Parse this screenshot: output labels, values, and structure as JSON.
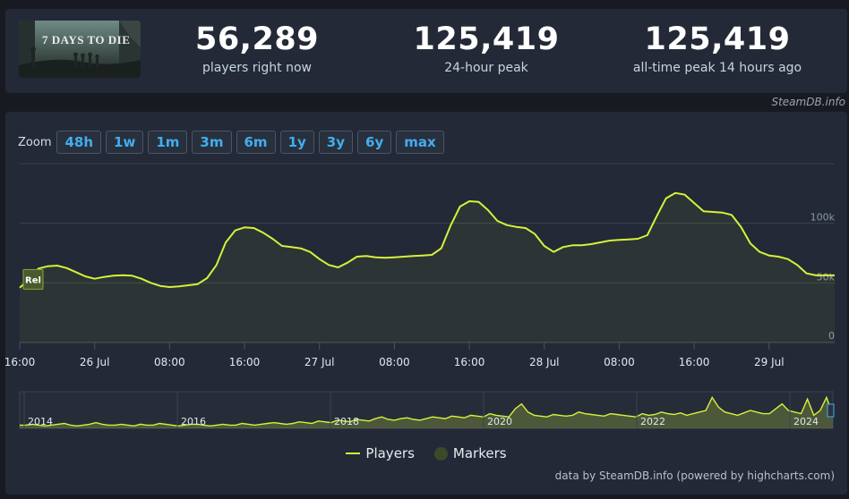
{
  "header": {
    "game_logo_text": "7 DAYS TO DIE",
    "stats": [
      {
        "value": "56,289",
        "label": "players right now"
      },
      {
        "value": "125,419",
        "label": "24-hour peak"
      },
      {
        "value": "125,419",
        "label": "all-time peak 14 hours ago"
      }
    ],
    "credit": "SteamDB.info"
  },
  "zoom": {
    "label": "Zoom",
    "buttons": [
      "48h",
      "1w",
      "1m",
      "3m",
      "6m",
      "1y",
      "3y",
      "6y",
      "max"
    ]
  },
  "legend": {
    "players": "Players",
    "markers": "Markers"
  },
  "footer_credit": "data by SteamDB.info (powered by highcharts.com)",
  "colors": {
    "line": "#d7f13a",
    "accent": "#41aef0",
    "panel": "#232936",
    "background": "#171a21"
  },
  "chart_data": [
    {
      "type": "line",
      "series": [
        {
          "name": "Players",
          "x": [
            "25 Jul 16:00",
            "25 Jul 17:00",
            "25 Jul 18:00",
            "25 Jul 19:00",
            "25 Jul 20:00",
            "25 Jul 21:00",
            "25 Jul 22:00",
            "25 Jul 23:00",
            "26 Jul 00:00",
            "26 Jul 01:00",
            "26 Jul 02:00",
            "26 Jul 03:00",
            "26 Jul 04:00",
            "26 Jul 05:00",
            "26 Jul 06:00",
            "26 Jul 07:00",
            "26 Jul 08:00",
            "26 Jul 09:00",
            "26 Jul 10:00",
            "26 Jul 11:00",
            "26 Jul 12:00",
            "26 Jul 13:00",
            "26 Jul 14:00",
            "26 Jul 15:00",
            "26 Jul 16:00",
            "26 Jul 17:00",
            "26 Jul 18:00",
            "26 Jul 19:00",
            "26 Jul 20:00",
            "26 Jul 21:00",
            "26 Jul 22:00",
            "26 Jul 23:00",
            "27 Jul 00:00",
            "27 Jul 01:00",
            "27 Jul 02:00",
            "27 Jul 03:00",
            "27 Jul 04:00",
            "27 Jul 05:00",
            "27 Jul 06:00",
            "27 Jul 07:00",
            "27 Jul 08:00",
            "27 Jul 09:00",
            "27 Jul 10:00",
            "27 Jul 11:00",
            "27 Jul 12:00",
            "27 Jul 13:00",
            "27 Jul 14:00",
            "27 Jul 15:00",
            "27 Jul 16:00",
            "27 Jul 17:00",
            "27 Jul 18:00",
            "27 Jul 19:00",
            "27 Jul 20:00",
            "27 Jul 21:00",
            "27 Jul 22:00",
            "27 Jul 23:00",
            "28 Jul 00:00",
            "28 Jul 01:00",
            "28 Jul 02:00",
            "28 Jul 03:00",
            "28 Jul 04:00",
            "28 Jul 05:00",
            "28 Jul 06:00",
            "28 Jul 07:00",
            "28 Jul 08:00",
            "28 Jul 09:00",
            "28 Jul 10:00",
            "28 Jul 11:00",
            "28 Jul 12:00",
            "28 Jul 13:00",
            "28 Jul 14:00",
            "28 Jul 15:00",
            "28 Jul 16:00",
            "28 Jul 17:00",
            "28 Jul 18:00",
            "28 Jul 19:00",
            "28 Jul 20:00",
            "28 Jul 21:00",
            "28 Jul 22:00",
            "28 Jul 23:00",
            "29 Jul 00:00",
            "29 Jul 01:00",
            "29 Jul 02:00",
            "29 Jul 03:00",
            "29 Jul 04:00",
            "29 Jul 05:00",
            "29 Jul 06:00",
            "29 Jul 07:00"
          ],
          "values": [
            46000,
            53000,
            62000,
            64000,
            64500,
            62500,
            59000,
            55500,
            53500,
            55000,
            56000,
            56500,
            56000,
            53500,
            50000,
            47500,
            46500,
            47000,
            48000,
            49000,
            54000,
            65000,
            84000,
            94000,
            96500,
            96000,
            92000,
            87000,
            81000,
            80000,
            79000,
            76000,
            70000,
            65000,
            63000,
            67000,
            72000,
            72500,
            71500,
            71000,
            71500,
            72000,
            72500,
            73000,
            73500,
            79000,
            98000,
            114000,
            118500,
            118000,
            111000,
            102000,
            98500,
            97000,
            96000,
            91000,
            81000,
            76000,
            80000,
            81500,
            81500,
            82500,
            84000,
            85500,
            86000,
            86500,
            87000,
            90000,
            106000,
            121000,
            125419,
            124000,
            117000,
            110000,
            109500,
            109000,
            107000,
            97000,
            83000,
            76000,
            73000,
            72000,
            70000,
            65000,
            58000,
            56289,
            56289,
            56289
          ]
        }
      ],
      "markers": [
        {
          "label": "Rel"
        }
      ],
      "x_ticks": [
        "16:00",
        "26 Jul",
        "08:00",
        "16:00",
        "27 Jul",
        "08:00",
        "16:00",
        "28 Jul",
        "08:00",
        "16:00",
        "29 Jul"
      ],
      "y_ticks": [
        "0",
        "50k",
        "100k"
      ],
      "ylim": [
        0,
        150000
      ],
      "grid": true
    },
    {
      "type": "area",
      "role": "navigator",
      "x_ticks": [
        "2014",
        "2016",
        "2018",
        "2020",
        "2022",
        "2024"
      ],
      "series": [
        {
          "values": [
            4,
            4,
            5,
            4,
            3,
            4,
            5,
            6,
            4,
            3,
            4,
            5,
            7,
            5,
            4,
            4,
            5,
            4,
            3,
            5,
            4,
            4,
            6,
            5,
            4,
            3,
            4,
            5,
            5,
            4,
            3,
            4,
            5,
            4,
            4,
            6,
            5,
            4,
            5,
            6,
            7,
            6,
            5,
            6,
            8,
            7,
            6,
            9,
            8,
            7,
            10,
            9,
            8,
            11,
            10,
            9,
            12,
            14,
            11,
            10,
            12,
            13,
            11,
            10,
            12,
            14,
            13,
            12,
            15,
            14,
            13,
            16,
            15,
            14,
            18,
            16,
            15,
            14,
            24,
            30,
            20,
            16,
            15,
            14,
            17,
            16,
            15,
            16,
            20,
            18,
            17,
            16,
            15,
            18,
            17,
            16,
            15,
            14,
            18,
            16,
            17,
            20,
            18,
            17,
            19,
            16,
            18,
            20,
            22,
            38,
            26,
            20,
            18,
            16,
            19,
            22,
            20,
            18,
            18,
            24,
            30,
            22,
            20,
            18,
            36,
            16,
            22,
            38,
            16
          ]
        }
      ]
    }
  ]
}
